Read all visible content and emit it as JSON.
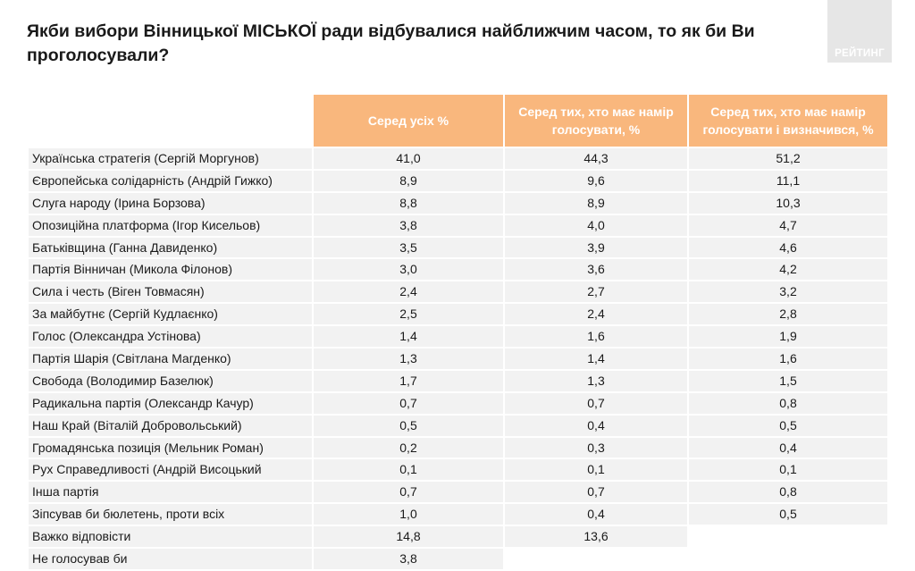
{
  "title": "Якби вибори Вінницької МІСЬКОЇ ради відбувалися найближчим часом, то як би Ви проголосували?",
  "logo": "РЕЙТИНГ",
  "columns": [
    "Серед усіх %",
    "Серед тих, хто має намір голосувати, %",
    "Серед тих, хто має намір голосувати і визначився, %"
  ],
  "rows": [
    {
      "name": "Українська стратегія (Сергій  Моргунов)",
      "all": "41,0",
      "voters": "44,3",
      "decided": "51,2"
    },
    {
      "name": "Європейська солідарність (Андрій Гижко)",
      "all": "8,9",
      "voters": "9,6",
      "decided": "11,1"
    },
    {
      "name": "Слуга народу (Ірина Борзова)",
      "all": "8,8",
      "voters": "8,9",
      "decided": "10,3"
    },
    {
      "name": "Опозиційна платформа (Ігор Кисельов)",
      "all": "3,8",
      "voters": "4,0",
      "decided": "4,7"
    },
    {
      "name": "Батьківщина (Ганна Давиденко)",
      "all": "3,5",
      "voters": "3,9",
      "decided": "4,6"
    },
    {
      "name": "Партія Вінничан (Микола Філонов)",
      "all": "3,0",
      "voters": "3,6",
      "decided": "4,2"
    },
    {
      "name": "Сила і честь (Віген Товмасян)",
      "all": "2,4",
      "voters": "2,7",
      "decided": "3,2"
    },
    {
      "name": "За майбутнє (Сергій Кудлаєнко)",
      "all": "2,5",
      "voters": "2,4",
      "decided": "2,8"
    },
    {
      "name": "Голос (Олександра Устінова)",
      "all": "1,4",
      "voters": "1,6",
      "decided": "1,9"
    },
    {
      "name": "Партія Шарія (Світлана Магденко)",
      "all": "1,3",
      "voters": "1,4",
      "decided": "1,6"
    },
    {
      "name": "Свобода (Володимир Базелюк)",
      "all": "1,7",
      "voters": "1,3",
      "decided": "1,5"
    },
    {
      "name": "Радикальна партія (Олександр Качур)",
      "all": "0,7",
      "voters": "0,7",
      "decided": "0,8"
    },
    {
      "name": "Наш Край (Віталій Добровольський)",
      "all": "0,5",
      "voters": "0,4",
      "decided": "0,5"
    },
    {
      "name": "Громадянська позиція (Мельник Роман)",
      "all": "0,2",
      "voters": "0,3",
      "decided": "0,4"
    },
    {
      "name": "Рух Справедливості (Андрій Висоцький",
      "all": "0,1",
      "voters": "0,1",
      "decided": "0,1"
    },
    {
      "name": "Інша партія",
      "all": "0,7",
      "voters": "0,7",
      "decided": "0,8"
    },
    {
      "name": "Зіпсував би бюлетень, проти всіх",
      "all": "1,0",
      "voters": "0,4",
      "decided": "0,5"
    },
    {
      "name": "Важко відповісти",
      "all": "14,8",
      "voters": "13,6",
      "decided": ""
    },
    {
      "name": "Не голосував би",
      "all": "3,8",
      "voters": "",
      "decided": ""
    }
  ]
}
